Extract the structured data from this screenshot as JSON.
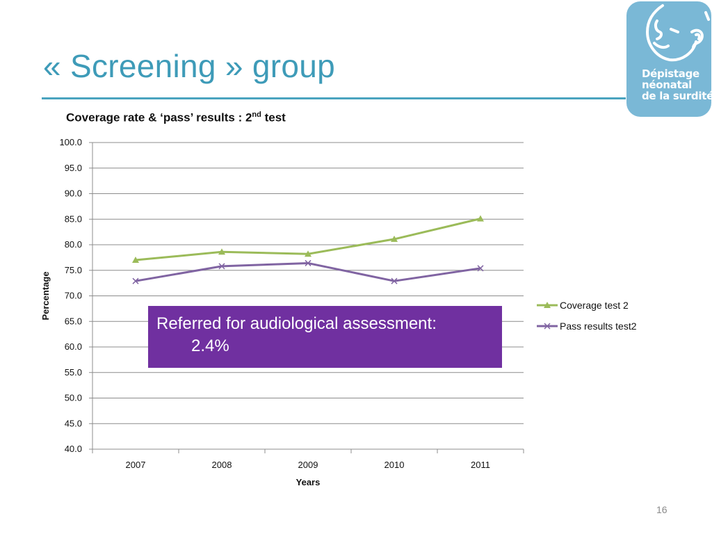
{
  "slide": {
    "title": "« Screening » group",
    "page_number": "16"
  },
  "logo": {
    "lines": [
      "Dépistage",
      "néonatal",
      "de la surdité"
    ],
    "color": "#7ab8d6"
  },
  "callout": {
    "text": "Referred for audiological assessment:",
    "value": "2.4%",
    "color": "#7030a0"
  },
  "chart_data": {
    "type": "line",
    "title_main": "Coverage rate & ‘pass’ results : 2",
    "title_sup": "nd",
    "title_tail": " test",
    "xlabel": "Years",
    "ylabel": "Percentage",
    "ylim": [
      40,
      100
    ],
    "ystep": 5,
    "grid": true,
    "legend": "right",
    "categories": [
      "2007",
      "2008",
      "2009",
      "2010",
      "2011"
    ],
    "series": [
      {
        "name": "Coverage test 2",
        "marker": "triangle",
        "color": "#9bbb59",
        "values": [
          77.0,
          78.6,
          78.2,
          81.1,
          85.1
        ]
      },
      {
        "name": "Pass results test2",
        "marker": "x",
        "color": "#8064a2",
        "values": [
          72.9,
          75.8,
          76.4,
          72.9,
          75.4
        ]
      }
    ]
  }
}
